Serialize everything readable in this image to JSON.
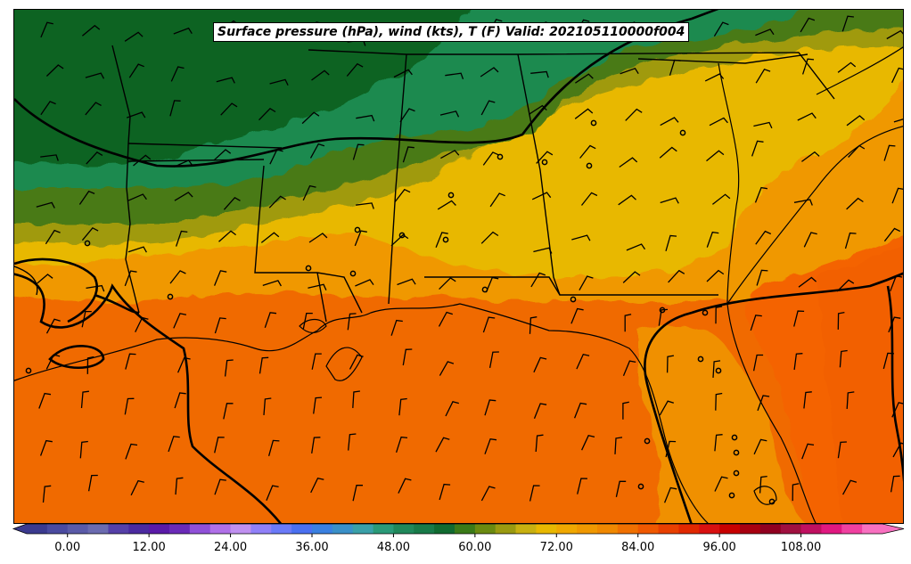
{
  "title": "Surface pressure (hPa), wind (kts), T (F) Valid: 202105110000f004",
  "colorbar": {
    "min": -6,
    "max": 120,
    "step": 3,
    "ticks": [
      {
        "value": 0,
        "label": "0.00"
      },
      {
        "value": 12,
        "label": "12.00"
      },
      {
        "value": 24,
        "label": "24.00"
      },
      {
        "value": 36,
        "label": "36.00"
      },
      {
        "value": 48,
        "label": "48.00"
      },
      {
        "value": 60,
        "label": "60.00"
      },
      {
        "value": 72,
        "label": "72.00"
      },
      {
        "value": 84,
        "label": "84.00"
      },
      {
        "value": 96,
        "label": "96.00"
      },
      {
        "value": 108,
        "label": "108.00"
      }
    ],
    "colors": [
      "#3b3a8f",
      "#4a4aa0",
      "#5a5aa8",
      "#6b6bb0",
      "#5540a8",
      "#4b2aa0",
      "#5a1aa8",
      "#6a2ab8",
      "#9050d8",
      "#b070e8",
      "#c090f0",
      "#9080f8",
      "#6a7af8",
      "#4a70f0",
      "#3a80e0",
      "#3a90c8",
      "#3aa0a8",
      "#2a9a78",
      "#20885a",
      "#187a48",
      "#106a30",
      "#3a7a18",
      "#6a8a10",
      "#9a9a10",
      "#c8b010",
      "#e8b800",
      "#f0a800",
      "#f09800",
      "#f08800",
      "#f07000",
      "#f05800",
      "#e84000",
      "#e02800",
      "#d81010",
      "#c80000",
      "#a80010",
      "#900020",
      "#a01040",
      "#c01060",
      "#e01880",
      "#f040a0",
      "#f870c0"
    ]
  },
  "overlay": {
    "coastline_color": "#000000",
    "state_border_color": "#000000",
    "isobar_color": "#000000",
    "wind_barb_color": "#000000"
  }
}
